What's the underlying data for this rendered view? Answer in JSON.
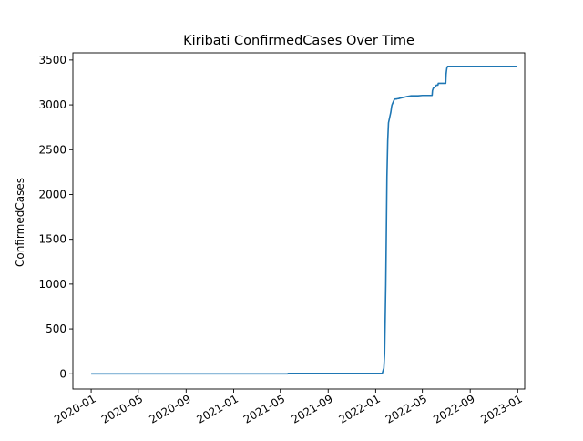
{
  "chart_data": {
    "type": "line",
    "title": "Kiribati  ConfirmedCases Over Time",
    "xlabel": "",
    "ylabel": "ConfirmedCases",
    "xlim": [
      "2019-11-15",
      "2023-01-19"
    ],
    "ylim": [
      -170,
      3580
    ],
    "grid": false,
    "x_tick_labels": [
      "2020-01",
      "2020-05",
      "2020-09",
      "2021-01",
      "2021-05",
      "2021-09",
      "2022-01",
      "2022-05",
      "2022-09",
      "2023-01"
    ],
    "x_tick_dates": [
      "2020-01-01",
      "2020-05-01",
      "2020-09-01",
      "2021-01-01",
      "2021-05-01",
      "2021-09-01",
      "2022-01-01",
      "2022-05-01",
      "2022-09-01",
      "2023-01-01"
    ],
    "y_ticks": [
      0,
      500,
      1000,
      1500,
      2000,
      2500,
      3000,
      3500
    ],
    "colors": {
      "series": "#1f77b4"
    },
    "series": [
      {
        "x": [
          "2020-01-01",
          "2021-05-20",
          "2021-05-21",
          "2022-01-18",
          "2022-01-20",
          "2022-01-21",
          "2022-01-22",
          "2022-01-24",
          "2022-01-27",
          "2022-01-30",
          "2022-02-01",
          "2022-02-03",
          "2022-02-05",
          "2022-02-06",
          "2022-02-07",
          "2022-02-08",
          "2022-02-09",
          "2022-02-10",
          "2022-02-11",
          "2022-02-12",
          "2022-02-15",
          "2022-02-18",
          "2022-02-20",
          "2022-02-23",
          "2022-02-26",
          "2022-03-01",
          "2022-03-05",
          "2022-03-10",
          "2022-03-20",
          "2022-04-01",
          "2022-04-10",
          "2022-04-20",
          "2022-05-01",
          "2022-05-15",
          "2022-05-26",
          "2022-05-27",
          "2022-05-29",
          "2022-06-01",
          "2022-06-03",
          "2022-06-06",
          "2022-06-10",
          "2022-06-11",
          "2022-06-20",
          "2022-06-30",
          "2022-07-01",
          "2022-07-02",
          "2022-07-03",
          "2022-07-05",
          "2022-12-31"
        ],
        "y": [
          0,
          0,
          5,
          5,
          35,
          50,
          60,
          220,
          1000,
          2200,
          2600,
          2800,
          2840,
          2860,
          2880,
          2900,
          2920,
          2950,
          2980,
          3000,
          3030,
          3060,
          3065,
          3065,
          3068,
          3070,
          3075,
          3080,
          3090,
          3100,
          3100,
          3100,
          3105,
          3105,
          3105,
          3160,
          3185,
          3195,
          3200,
          3220,
          3220,
          3240,
          3240,
          3240,
          3340,
          3380,
          3410,
          3430,
          3430
        ]
      }
    ]
  }
}
